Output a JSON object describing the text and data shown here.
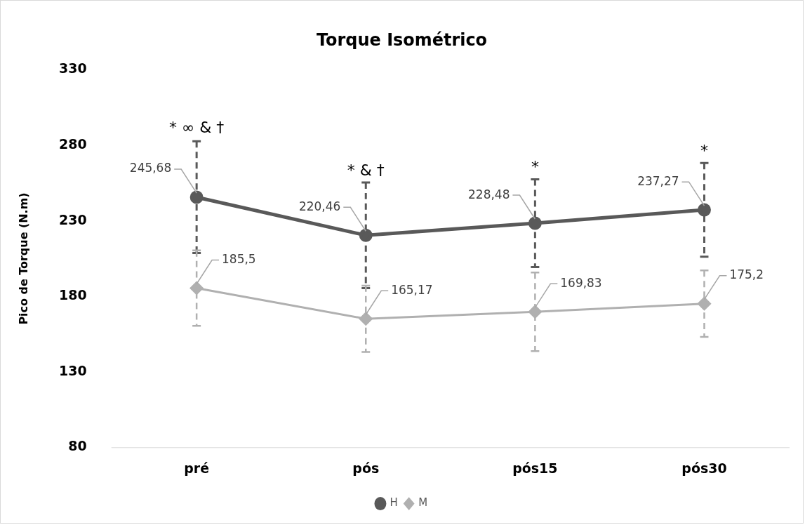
{
  "chart_data": {
    "type": "line",
    "title": "Torque Isométrico",
    "ylabel": "Pico de Torque (N.m)",
    "categories": [
      "pré",
      "pós",
      "pós15",
      "pós30"
    ],
    "series": [
      {
        "name": "H",
        "color": "#595959",
        "marker": "circle",
        "values": [
          245.68,
          220.46,
          228.48,
          237.27
        ],
        "value_labels": [
          "245,68",
          "220,46",
          "228,48",
          "237,27"
        ],
        "errors": [
          37,
          35,
          29,
          31
        ]
      },
      {
        "name": "M",
        "color": "#b0b0b0",
        "marker": "diamond",
        "values": [
          185.5,
          165.17,
          169.83,
          175.2
        ],
        "value_labels": [
          "185,5",
          "165,17",
          "169,83",
          "175,2"
        ],
        "errors": [
          25,
          22,
          26,
          22
        ]
      }
    ],
    "ylim": [
      80,
      330
    ],
    "yticks": [
      80,
      130,
      180,
      230,
      280,
      330
    ],
    "grid": false,
    "legend": "bottom",
    "annotations": [
      {
        "text": "* ∞ & †",
        "x": "pré",
        "y": 283
      },
      {
        "text": "* & †",
        "x": "pós",
        "y": 255
      },
      {
        "text": "*",
        "x": "pós15",
        "y": 257
      },
      {
        "text": "*",
        "x": "pós30",
        "y": 268
      }
    ]
  }
}
